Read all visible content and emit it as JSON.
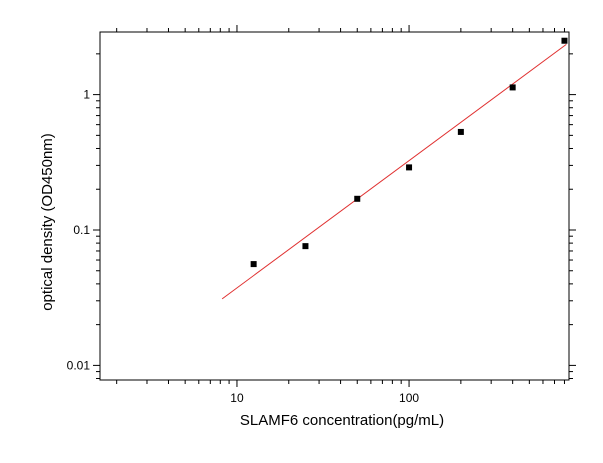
{
  "chart_data": {
    "type": "scatter",
    "title": "",
    "xlabel": "SLAMF6  concentration(pg/mL)",
    "ylabel": "optical density (OD450nm)",
    "xscale": "log",
    "yscale": "log",
    "xlim": [
      1.6,
      850
    ],
    "ylim": [
      0.0078,
      2.9
    ],
    "x_ticks": [
      {
        "value": 10,
        "label": "10"
      },
      {
        "value": 100,
        "label": "100"
      }
    ],
    "y_ticks": [
      {
        "value": 0.01,
        "label": "0.01"
      },
      {
        "value": 0.1,
        "label": "0.1"
      },
      {
        "value": 1,
        "label": "1"
      }
    ],
    "grid": false,
    "legend": "none",
    "points": [
      {
        "x": 12.5,
        "y": 0.056
      },
      {
        "x": 25,
        "y": 0.076
      },
      {
        "x": 50,
        "y": 0.17
      },
      {
        "x": 100,
        "y": 0.29
      },
      {
        "x": 200,
        "y": 0.53
      },
      {
        "x": 400,
        "y": 1.13
      },
      {
        "x": 800,
        "y": 2.5
      }
    ],
    "fit_line": {
      "x_start": 8.2,
      "y_start": 0.031,
      "x_end": 820,
      "y_end": 2.35
    },
    "point_color": "#000000",
    "fit_color": "#e03030"
  }
}
